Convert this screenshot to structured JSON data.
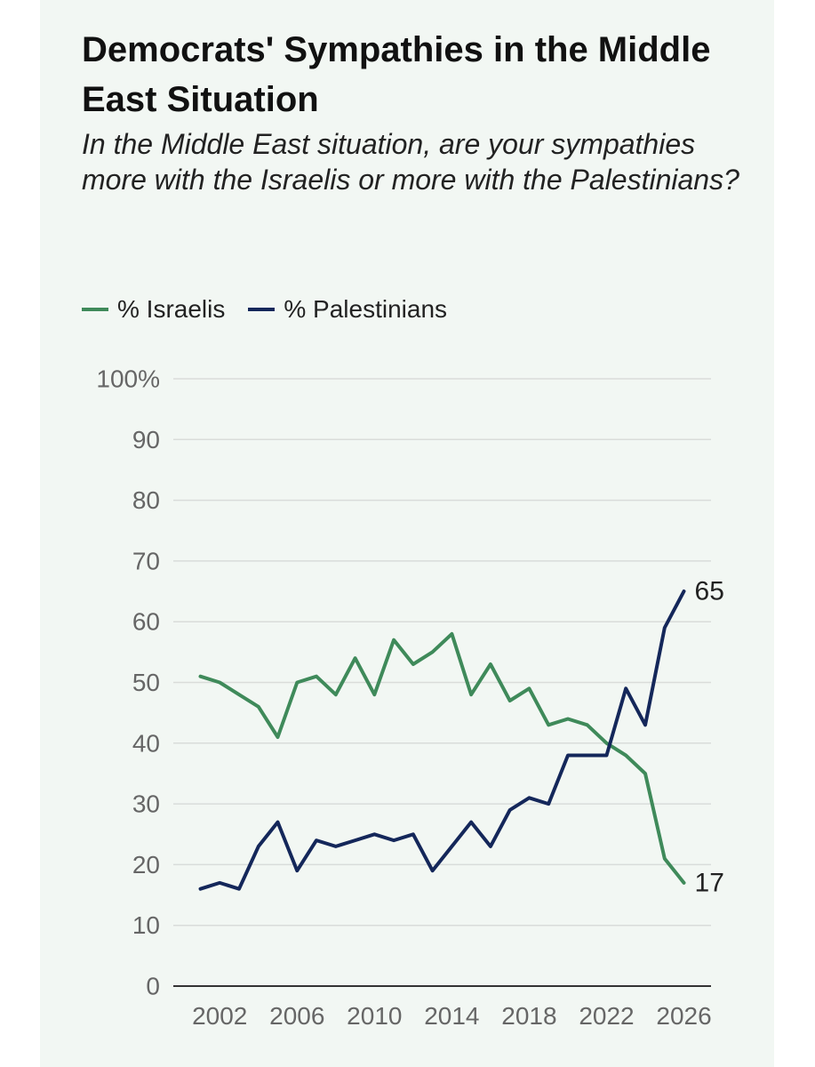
{
  "chart_data": {
    "type": "line",
    "title": "Democrats' Sympathies in the Middle East Situation",
    "subtitle": "In the Middle East situation, are your sympathies more with the Israelis or more with the Palestinians?",
    "xlabel": "",
    "ylabel": "",
    "xlim": [
      1999.6,
      2027.4
    ],
    "ylim": [
      0,
      100
    ],
    "x_ticks": [
      2002,
      2006,
      2010,
      2014,
      2018,
      2022,
      2026
    ],
    "x_tick_labels": [
      "2002",
      "2006",
      "2010",
      "2014",
      "2018",
      "2022",
      "2026"
    ],
    "y_ticks": [
      0,
      10,
      20,
      30,
      40,
      50,
      60,
      70,
      80,
      90,
      100
    ],
    "y_tick_labels": [
      "0",
      "10",
      "20",
      "30",
      "40",
      "50",
      "60",
      "70",
      "80",
      "90",
      "100%"
    ],
    "grid": true,
    "legend_position": "top-left",
    "x": [
      2001,
      2002,
      2003,
      2004,
      2005,
      2006,
      2007,
      2008,
      2009,
      2010,
      2011,
      2012,
      2013,
      2014,
      2015,
      2016,
      2017,
      2018,
      2019,
      2020,
      2021,
      2022,
      2023,
      2024,
      2025,
      2026
    ],
    "series": [
      {
        "name": "% Israelis",
        "color": "#3f8a5a",
        "values": [
          51,
          50,
          48,
          46,
          41,
          50,
          51,
          48,
          54,
          48,
          57,
          53,
          55,
          58,
          48,
          53,
          47,
          49,
          43,
          44,
          43,
          40,
          38,
          35,
          21,
          17
        ],
        "end_label": "17"
      },
      {
        "name": "% Palestinians",
        "color": "#14275a",
        "values": [
          16,
          17,
          16,
          23,
          27,
          19,
          24,
          23,
          24,
          25,
          24,
          25,
          19,
          23,
          27,
          23,
          29,
          31,
          30,
          38,
          38,
          38,
          49,
          43,
          59,
          65
        ],
        "end_label": "65"
      }
    ]
  }
}
